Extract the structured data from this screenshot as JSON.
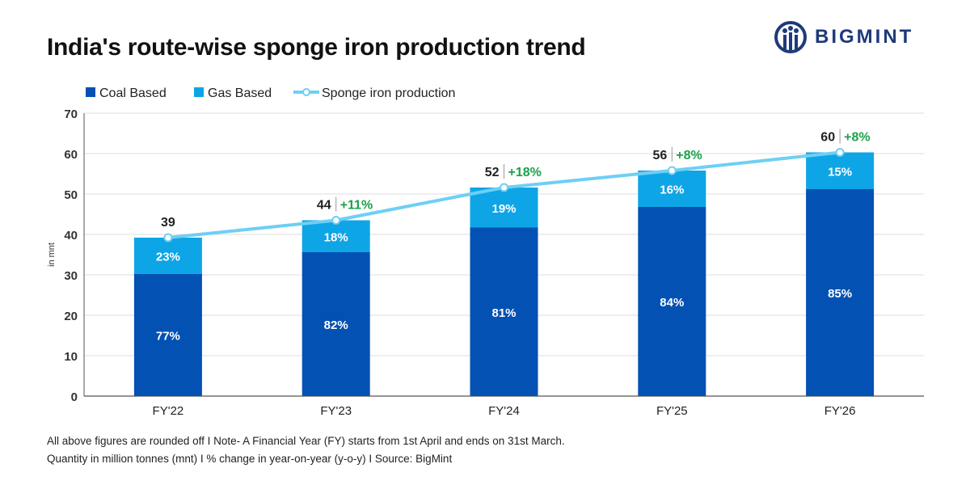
{
  "title": "India's route-wise sponge iron production trend",
  "brand": {
    "name": "BIGMINT",
    "color": "#1e3a7b",
    "icon": "bigmint-logo-icon"
  },
  "colors": {
    "coal": "#0451b4",
    "gas": "#0ea5e6",
    "line": "#6ecff5",
    "growth": "#1aa24a",
    "axis": "#555555",
    "grid": "#dddddd"
  },
  "footnotes": [
    "All above figures are rounded off  I  Note- A Financial Year (FY) starts from 1st April and ends on 31st March.",
    "Quantity in million tonnes (mnt)  I  % change in year-on-year (y-o-y)  I  Source: BigMint"
  ],
  "chart_data": {
    "type": "bar",
    "stacked": true,
    "categories": [
      "FY'22",
      "FY'23",
      "FY'24",
      "FY'25",
      "FY'26"
    ],
    "series": [
      {
        "name": "Coal Based",
        "values": [
          30.2,
          35.6,
          41.7,
          46.8,
          51.2
        ],
        "share_labels": [
          "77%",
          "82%",
          "81%",
          "84%",
          "85%"
        ]
      },
      {
        "name": "Gas Based",
        "values": [
          9.0,
          7.9,
          9.9,
          9.0,
          9.1
        ],
        "share_labels": [
          "23%",
          "18%",
          "19%",
          "16%",
          "15%"
        ]
      }
    ],
    "line": {
      "name": "Sponge iron production",
      "values": [
        39.2,
        43.5,
        51.6,
        55.8,
        60.3
      ],
      "labels": [
        "39",
        "44",
        "52",
        "56",
        "60"
      ],
      "growth": [
        "",
        "+11%",
        "+18%",
        "+8%",
        "+8%"
      ]
    },
    "ylabel": "in mnt",
    "ylim": [
      0,
      70
    ],
    "yticks": [
      0,
      10,
      20,
      30,
      40,
      50,
      60,
      70
    ],
    "grid": true,
    "legend": "top-left"
  }
}
